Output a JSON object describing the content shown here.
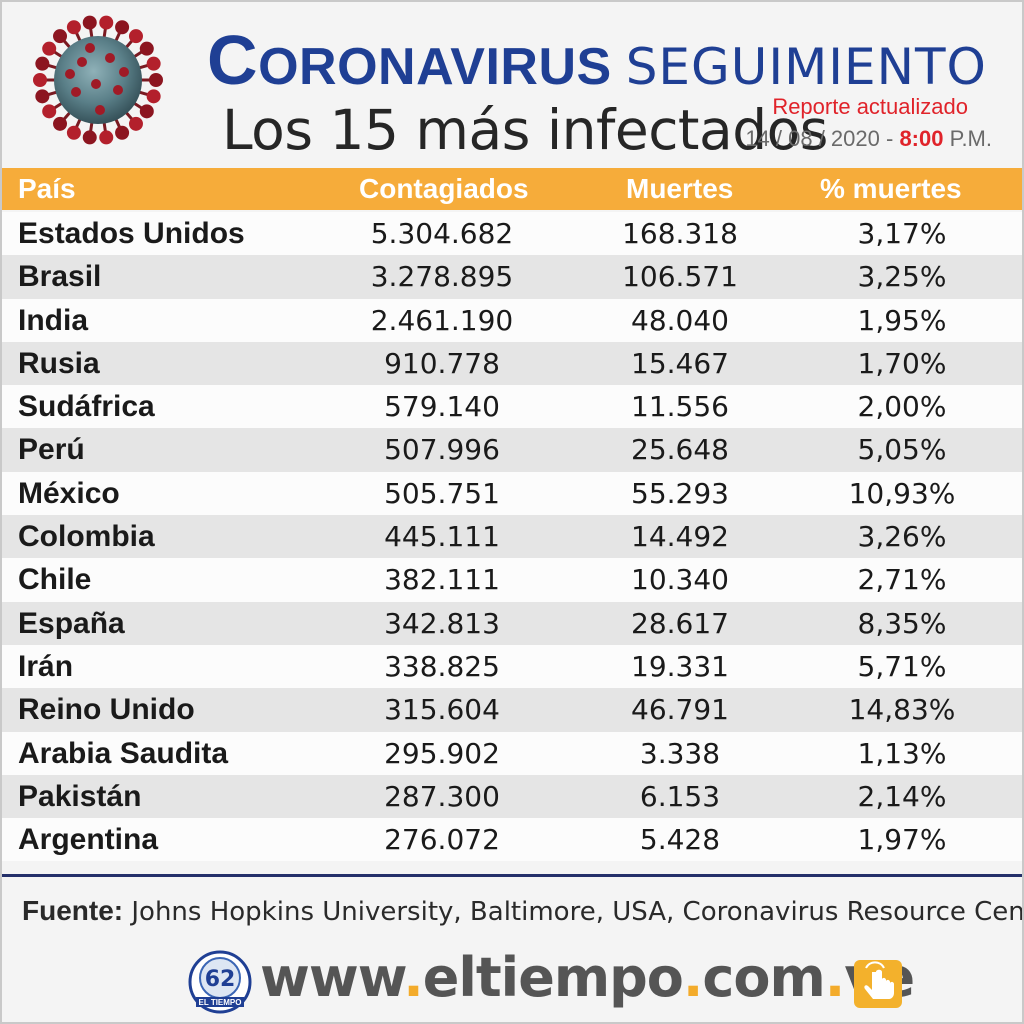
{
  "header": {
    "title_main": "Coronavirus",
    "title_sub": "Seguimiento",
    "subtitle": "Los 15 más infectados",
    "report_label": "Reporte actualizado",
    "report_date": "14 / 08 / 2020 -",
    "report_time": "8:00",
    "report_ampm": "P.M."
  },
  "chart_data": {
    "type": "table",
    "columns": [
      "País",
      "Contagiados",
      "Muertes",
      "% muertes"
    ],
    "rows": [
      [
        "Estados Unidos",
        "5.304.682",
        "168.318",
        "3,17%"
      ],
      [
        "Brasil",
        "3.278.895",
        "106.571",
        "3,25%"
      ],
      [
        "India",
        "2.461.190",
        "48.040",
        "1,95%"
      ],
      [
        "Rusia",
        "910.778",
        "15.467",
        "1,70%"
      ],
      [
        "Sudáfrica",
        "579.140",
        "11.556",
        "2,00%"
      ],
      [
        "Perú",
        "507.996",
        "25.648",
        "5,05%"
      ],
      [
        "México",
        "505.751",
        "55.293",
        "10,93%"
      ],
      [
        "Colombia",
        "445.111",
        "14.492",
        "3,26%"
      ],
      [
        "Chile",
        "382.111",
        "10.340",
        "2,71%"
      ],
      [
        "España",
        "342.813",
        "28.617",
        "8,35%"
      ],
      [
        "Irán",
        "338.825",
        "19.331",
        "5,71%"
      ],
      [
        "Reino Unido",
        "315.604",
        "46.791",
        "14,83%"
      ],
      [
        "Arabia Saudita",
        "295.902",
        "3.338",
        "1,13%"
      ],
      [
        "Pakistán",
        "287.300",
        "6.153",
        "2,14%"
      ],
      [
        "Argentina",
        "276.072",
        "5.428",
        "1,97%"
      ]
    ]
  },
  "footer": {
    "source_label": "Fuente:",
    "source_text": " Johns Hopkins University, Baltimore, USA, Coronavirus Resource Center",
    "site_parts": [
      "www",
      ".",
      "eltiempo",
      ".",
      "com",
      ".",
      "ve"
    ],
    "logo_text": "EL TIEMPO"
  },
  "colors": {
    "title_blue": "#1f3f94",
    "header_orange": "#f6ac3a",
    "report_red": "#e0232a",
    "divider_navy": "#24306a",
    "site_dot": "#f3ab2b"
  },
  "icons": [
    "coronavirus-icon",
    "el-tiempo-logo-icon",
    "pointing-hand-icon"
  ]
}
